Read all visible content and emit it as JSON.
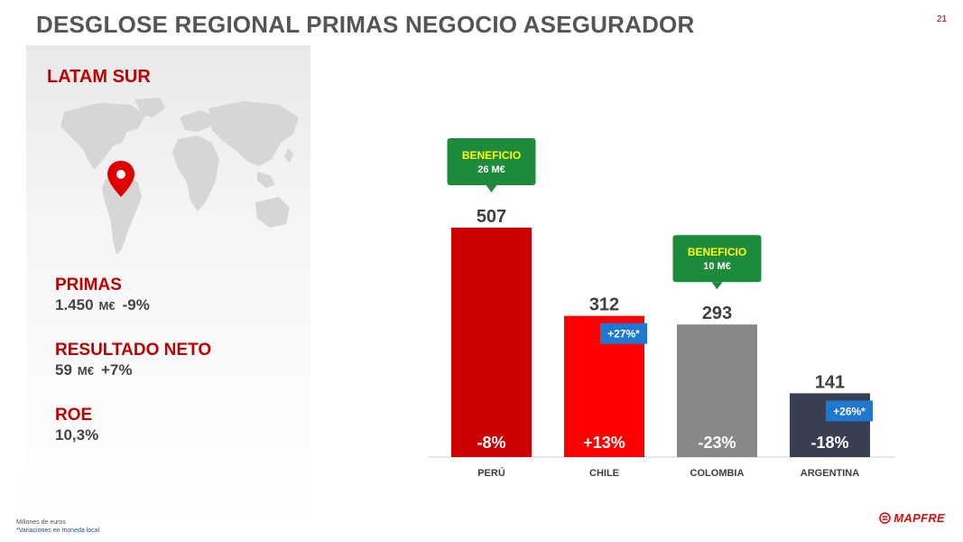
{
  "header": {
    "title": "DESGLOSE REGIONAL PRIMAS NEGOCIO ASEGURADOR",
    "page_number": "21"
  },
  "left_panel": {
    "region": "LATAM SUR",
    "kpis": [
      {
        "label": "PRIMAS",
        "value": "1.450",
        "unit": "M€",
        "delta": "-9%"
      },
      {
        "label": "RESULTADO NETO",
        "value": "59",
        "unit": "M€",
        "delta": "+7%"
      },
      {
        "label": "ROE",
        "value": "10,3%",
        "unit": "",
        "delta": ""
      }
    ]
  },
  "chart_data": {
    "type": "bar",
    "categories": [
      "PERÚ",
      "CHILE",
      "COLOMBIA",
      "ARGENTINA"
    ],
    "values": [
      507,
      312,
      293,
      141
    ],
    "value_labels": [
      "507",
      "312",
      "293",
      "141"
    ],
    "variation_labels": [
      "-8%",
      "+13%",
      "-23%",
      "-18%"
    ],
    "bar_colors": [
      "#cc0000",
      "#ff0000",
      "#888888",
      "#3a3e53"
    ],
    "local_currency_badges": [
      {
        "category": "CHILE",
        "label": "+27%*"
      },
      {
        "category": "ARGENTINA",
        "label": "+26%*"
      }
    ],
    "callouts": [
      {
        "category": "PERÚ",
        "line1": "BENEFICIO",
        "line2": "26 M€"
      },
      {
        "category": "COLOMBIA",
        "line1": "BENEFICIO",
        "line2": "10 M€"
      }
    ],
    "callout_colors": {
      "background": "#1e8a3c",
      "line1": "#ffff00",
      "line2": "#ffffff"
    },
    "badge_color": "#1e78d0",
    "title": "",
    "xlabel": "",
    "ylabel": "",
    "ylim": [
      0,
      600
    ],
    "grid": false,
    "legend": "none"
  },
  "footer": {
    "note1": "Millones de euros",
    "note2": "*Variaciones en moneda local",
    "brand": "MAPFRE"
  },
  "colors": {
    "accent_red": "#c00000",
    "title_gray": "#555555",
    "brand_red": "#d10f0f"
  },
  "icons": {
    "map": "world-map-icon",
    "pin": "location-pin-icon",
    "brand_logo": "mapfre-logo-icon"
  }
}
